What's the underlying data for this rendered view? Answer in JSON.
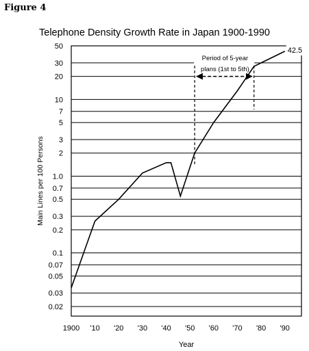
{
  "figure_label": "Figure 4",
  "chart_data": {
    "type": "line",
    "title": "Telephone Density Growth Rate in Japan 1900-1990",
    "xlabel": "Year",
    "ylabel": "Main Lines per 100 Persons",
    "xlim": [
      1900,
      1997
    ],
    "ylim": [
      0.015,
      50
    ],
    "log_y": true,
    "grid": "horizontal",
    "x_ticks": [
      {
        "value": 1900,
        "label": "1900"
      },
      {
        "value": 1910,
        "label": "'10"
      },
      {
        "value": 1920,
        "label": "'20"
      },
      {
        "value": 1930,
        "label": "'30"
      },
      {
        "value": 1940,
        "label": "'40"
      },
      {
        "value": 1950,
        "label": "'50"
      },
      {
        "value": 1960,
        "label": "'60"
      },
      {
        "value": 1970,
        "label": "'70"
      },
      {
        "value": 1980,
        "label": "'80"
      },
      {
        "value": 1990,
        "label": "'90"
      }
    ],
    "y_ticks": [
      {
        "value": 50,
        "label": "50"
      },
      {
        "value": 30,
        "label": "30"
      },
      {
        "value": 20,
        "label": "20"
      },
      {
        "value": 10,
        "label": "10"
      },
      {
        "value": 7,
        "label": "7"
      },
      {
        "value": 5,
        "label": "5"
      },
      {
        "value": 3,
        "label": "3"
      },
      {
        "value": 2,
        "label": "2"
      },
      {
        "value": 1,
        "label": "1.0"
      },
      {
        "value": 0.7,
        "label": "0.7"
      },
      {
        "value": 0.5,
        "label": "0.5"
      },
      {
        "value": 0.3,
        "label": "0.3"
      },
      {
        "value": 0.2,
        "label": "0.2"
      },
      {
        "value": 0.1,
        "label": "0.1"
      },
      {
        "value": 0.07,
        "label": "0.07"
      },
      {
        "value": 0.05,
        "label": "0.05"
      },
      {
        "value": 0.03,
        "label": "0.03"
      },
      {
        "value": 0.02,
        "label": "0.02"
      }
    ],
    "series": [
      {
        "x": [
          1900,
          1910,
          1920,
          1930,
          1940,
          1942,
          1946,
          1952,
          1960,
          1970,
          1977,
          1990
        ],
        "y": [
          0.035,
          0.26,
          0.5,
          1.1,
          1.5,
          1.5,
          0.55,
          2.0,
          5.0,
          13.0,
          27.0,
          42.5
        ]
      }
    ],
    "annotations": {
      "end_value_label": "42.5",
      "period_label_line1": "Period of 5-year",
      "period_label_line2": "plans (1st to 5th)",
      "period_start": 1952,
      "period_end": 1977,
      "period_arrow_y": 20
    }
  }
}
